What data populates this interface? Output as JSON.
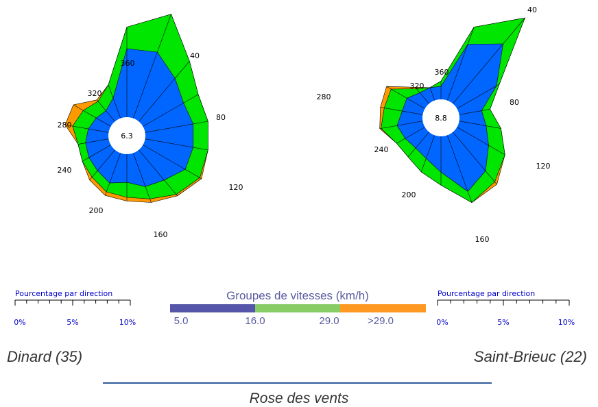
{
  "chart_data": {
    "type": "wind-rose",
    "speed_legend": {
      "title": "Groupes de vitesses (km/h)",
      "bins": [
        {
          "label": "5.0",
          "color": "#5555aa"
        },
        {
          "label": "16.0",
          "color": "#88cc66"
        },
        {
          "label": "29.0",
          "color": "#ff9922"
        },
        {
          "label": ">29.0"
        }
      ],
      "rose_colors": [
        "#0066ff",
        "#00e600",
        "#ff9900"
      ]
    },
    "percent_scale": {
      "title": "Pourcentage par direction",
      "ticks": [
        "0%",
        "5%",
        "10%"
      ]
    },
    "direction_labels": [
      "40",
      "80",
      "120",
      "160",
      "200",
      "240",
      "280",
      "320",
      "360"
    ],
    "roses": [
      {
        "station": "Dinard (35)",
        "calm": "6.3",
        "directions_deg": [
          0,
          20,
          40,
          60,
          80,
          100,
          120,
          140,
          160,
          180,
          200,
          220,
          240,
          260,
          280,
          300,
          320,
          340
        ],
        "cumulative_percent": [
          [
            7.3,
            7.5,
            6.0,
            5.0,
            5.2,
            5.2,
            5.2,
            4.2,
            3.8,
            3.0,
            3.4,
            2.9,
            2.7,
            2.5,
            2.2,
            1.8,
            1.5,
            2.3
          ],
          [
            9.6,
            11.8,
            8.4,
            6.8,
            6.8,
            6.8,
            7.0,
            6.2,
            5.2,
            4.6,
            4.4,
            3.8,
            3.5,
            3.3,
            3.9,
            3.4,
            2.8,
            3.8
          ],
          [
            9.6,
            11.8,
            8.4,
            6.8,
            6.8,
            6.8,
            7.2,
            6.4,
            5.6,
            5.0,
            4.8,
            4.2,
            3.5,
            3.3,
            4.7,
            4.6,
            3.0,
            3.8
          ]
        ]
      },
      {
        "station": "Saint-Brieuc (22)",
        "calm": "8.8",
        "directions_deg": [
          0,
          20,
          40,
          60,
          80,
          100,
          120,
          140,
          160,
          180,
          200,
          220,
          240,
          260,
          280,
          300,
          320,
          340
        ],
        "cumulative_percent": [
          [
            2.0,
            9.2,
            12.0,
            7.0,
            3.5,
            4.2,
            5.6,
            7.8,
            9.2,
            5.5,
            3.8,
            3.2,
            3.5,
            4.0,
            3.2,
            3.2,
            2.2,
            2.1
          ],
          [
            2.8,
            12.0,
            17.2,
            7.5,
            4.8,
            6.5,
            8.5,
            10.0,
            11.0,
            7.5,
            6.0,
            5.0,
            5.0,
            6.5,
            6.0,
            6.0,
            3.0,
            2.1
          ],
          [
            2.8,
            12.0,
            17.2,
            7.5,
            4.8,
            6.5,
            8.5,
            10.5,
            11.0,
            7.5,
            6.0,
            5.0,
            5.0,
            6.7,
            6.6,
            6.8,
            3.3,
            2.1
          ]
        ]
      }
    ]
  },
  "footer": {
    "title": "Rose des vents"
  }
}
